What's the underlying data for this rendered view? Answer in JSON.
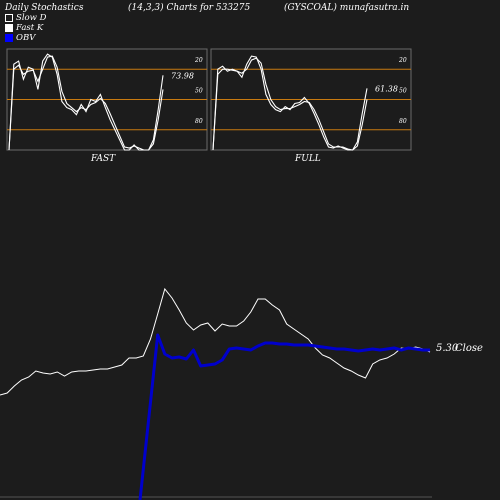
{
  "header": {
    "left": "Daily Stochastics",
    "center": "(14,3,3) Charts for 533275",
    "right": "(GYSCOAL) munafasutra.in"
  },
  "legend": [
    {
      "label": "Slow  D",
      "color": "#ffffff",
      "fill": "none"
    },
    {
      "label": "Fast K",
      "color": "#ffffff",
      "fill": "#ffffff"
    },
    {
      "label": "OBV",
      "color": "#0000ff",
      "fill": "#0000ff"
    }
  ],
  "colors": {
    "background": "#1c1c1c",
    "level_lines": "#c87a10",
    "price_line": "#ffffff",
    "obv_line": "#0000cc"
  },
  "chart_data": [
    {
      "type": "line",
      "panel": "FAST",
      "title": "FAST",
      "ylim": [
        0,
        100
      ],
      "levels": [
        20,
        50,
        80
      ],
      "tick_labels": [
        "80",
        "50",
        "20"
      ],
      "last_value_label": "73.98",
      "series": [
        {
          "values": [
            0,
            85,
            88,
            70,
            82,
            80,
            60,
            88,
            95,
            92,
            75,
            48,
            42,
            40,
            35,
            45,
            38,
            50,
            48,
            55,
            42,
            30,
            20,
            10,
            0,
            0,
            5,
            0,
            0,
            0,
            10,
            40,
            74
          ]
        },
        {
          "values": [
            0,
            80,
            84,
            75,
            78,
            79,
            68,
            80,
            92,
            93,
            82,
            58,
            46,
            42,
            38,
            42,
            40,
            45,
            47,
            51,
            46,
            36,
            25,
            14,
            3,
            2,
            4,
            2,
            0,
            0,
            6,
            30,
            60
          ]
        }
      ]
    },
    {
      "type": "line",
      "panel": "FULL",
      "title": "FULL",
      "ylim": [
        0,
        100
      ],
      "levels": [
        20,
        50,
        80
      ],
      "tick_labels": [
        "80",
        "50",
        "20"
      ],
      "last_value_label": "61.38",
      "series": [
        {
          "values": [
            0,
            80,
            83,
            78,
            80,
            78,
            72,
            85,
            93,
            92,
            80,
            55,
            45,
            40,
            38,
            43,
            40,
            46,
            47,
            52,
            46,
            36,
            25,
            13,
            3,
            2,
            4,
            2,
            0,
            0,
            8,
            36,
            61
          ]
        },
        {
          "values": [
            0,
            75,
            80,
            80,
            79,
            78,
            76,
            80,
            89,
            91,
            86,
            65,
            50,
            43,
            40,
            41,
            41,
            43,
            45,
            48,
            47,
            40,
            30,
            18,
            6,
            3,
            3,
            3,
            1,
            0,
            4,
            25,
            50
          ]
        }
      ]
    },
    {
      "type": "line",
      "panel": "price-obv",
      "last_value_label": "5.30",
      "close_label": "Close",
      "series": [
        {
          "name": "Close",
          "values": [
            395,
            393,
            386,
            380,
            377,
            371,
            373,
            374,
            372,
            376,
            372,
            371,
            371,
            370,
            369,
            369,
            367,
            365,
            358,
            358,
            356,
            339,
            314,
            289,
            298,
            310,
            323,
            330,
            325,
            323,
            331,
            324,
            326,
            326,
            321,
            312,
            299,
            299,
            305,
            310,
            324,
            329,
            334,
            339,
            348,
            355,
            358,
            363,
            368,
            371,
            375,
            378,
            364,
            360,
            358,
            354,
            348,
            349,
            347,
            349,
            352
          ]
        },
        {
          "name": "OBV",
          "values": [
            null,
            null,
            null,
            null,
            null,
            null,
            null,
            null,
            null,
            null,
            null,
            null,
            null,
            null,
            null,
            null,
            null,
            null,
            null,
            null,
            null,
            null,
            335,
            354,
            358,
            357,
            359,
            350,
            366,
            365,
            364,
            360,
            349,
            348,
            349,
            350,
            346,
            343,
            343,
            344,
            344,
            345,
            345,
            345,
            346,
            347,
            348,
            349,
            349,
            350,
            351,
            350,
            349,
            350,
            349,
            348,
            350,
            348,
            349,
            350,
            350
          ]
        }
      ]
    }
  ]
}
